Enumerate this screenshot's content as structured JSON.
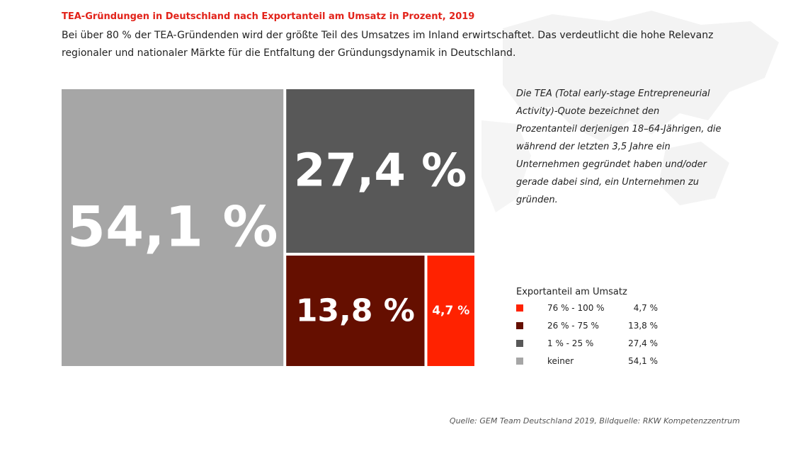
{
  "header": {
    "title": "TEA-Gründungen in Deutschland nach Exportanteil am Umsatz in Prozent, 2019",
    "subtitle": "Bei über 80 % der TEA-Gründenden wird der größte Teil des Umsatzes im Inland erwirtschaftet. Das verdeutlicht die hohe Relevanz regionaler und nationaler Märkte für die Entfaltung der Gründungsdynamik in Deutschland."
  },
  "note": "Die TEA (Total early-stage Entrepreneurial Activity)-Quote bezeichnet den Prozentanteil derjenigen 18–64-Jährigen, die während der letzten 3,5 Jahre ein Unternehmen gegründet haben und/oder gerade dabei sind, ein Unternehmen zu gründen.",
  "legend": {
    "title": "Exportanteil am Umsatz",
    "items": [
      {
        "range": "76 % - 100 %",
        "value": "4,7 %",
        "color": "#ff2200"
      },
      {
        "range": "26 % - 75 %",
        "value": "13,8 %",
        "color": "#650f00"
      },
      {
        "range": "1 % - 25 %",
        "value": "27,4 %",
        "color": "#585858"
      },
      {
        "range": "keiner",
        "value": "54,1 %",
        "color": "#a6a6a6"
      }
    ]
  },
  "source": "Quelle: GEM Team Deutschland 2019, Bildquelle: RKW Kompetenzzentrum",
  "chart_data": {
    "type": "treemap",
    "series": [
      {
        "category": "keiner",
        "value": 54.1,
        "label": "54,1 %",
        "color": "#a6a6a6"
      },
      {
        "category": "1 % - 25 %",
        "value": 27.4,
        "label": "27,4 %",
        "color": "#585858"
      },
      {
        "category": "26 % - 75 %",
        "value": 13.8,
        "label": "13,8 %",
        "color": "#650f00"
      },
      {
        "category": "76 % - 100 %",
        "value": 4.7,
        "label": "4,7 %",
        "color": "#ff2200"
      }
    ]
  }
}
